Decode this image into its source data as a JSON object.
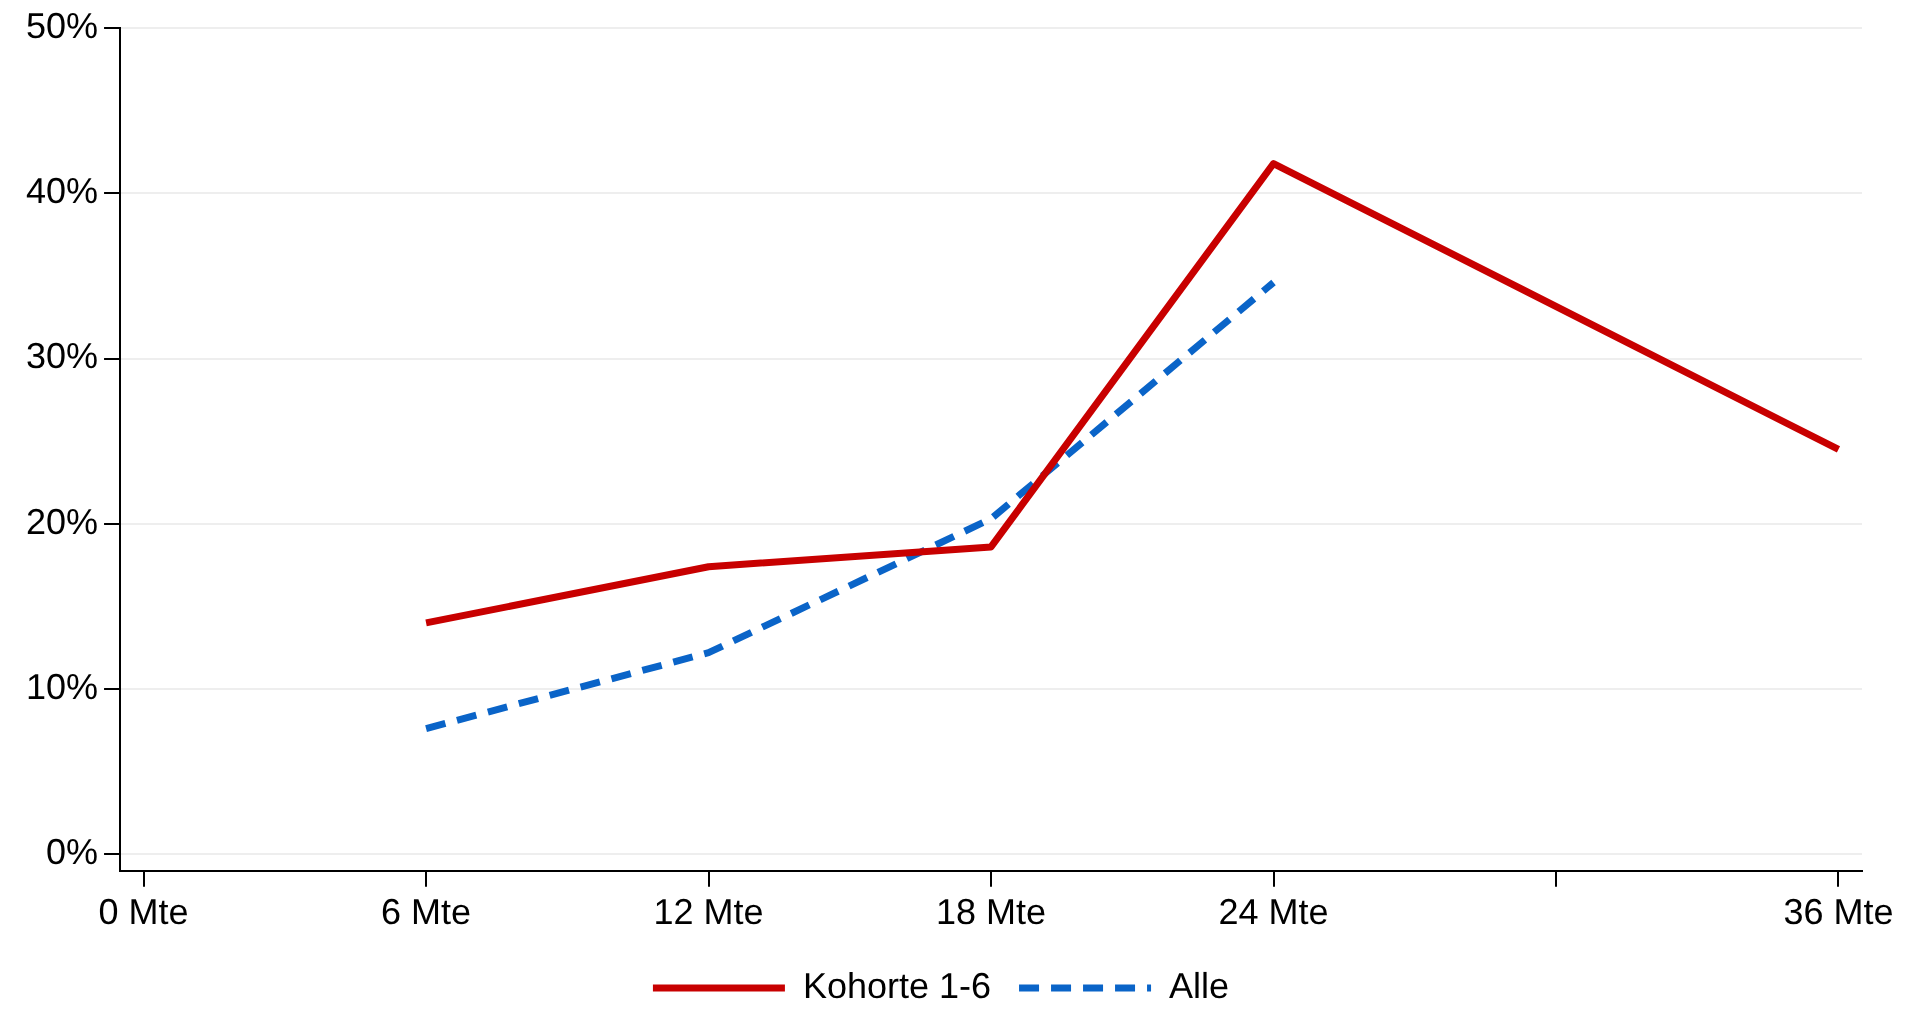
{
  "chart_data": {
    "type": "line",
    "xlim": [
      -0.5,
      36.5
    ],
    "ylim": [
      -1,
      50
    ],
    "xticks": [
      {
        "value": 0,
        "label": "0 Mte"
      },
      {
        "value": 6,
        "label": "6 Mte"
      },
      {
        "value": 12,
        "label": "12 Mte"
      },
      {
        "value": 18,
        "label": "18 Mte"
      },
      {
        "value": 24,
        "label": "24 Mte"
      },
      {
        "value": 30,
        "label": null
      },
      {
        "value": 36,
        "label": "36 Mte"
      }
    ],
    "yticks": [
      {
        "value": 0,
        "label": "0%"
      },
      {
        "value": 10,
        "label": "10%"
      },
      {
        "value": 20,
        "label": "20%"
      },
      {
        "value": 30,
        "label": "30%"
      },
      {
        "value": 40,
        "label": "40%"
      },
      {
        "value": 50,
        "label": "50%"
      }
    ],
    "grid": "y",
    "legend": "bottom",
    "marker": "none",
    "series": [
      {
        "name": "Kohorte 1-6",
        "color": "#c80000",
        "line_style": "solid",
        "x": [
          6,
          12,
          18,
          24,
          36
        ],
        "values": [
          14.0,
          17.4,
          18.6,
          41.8,
          24.5
        ]
      },
      {
        "name": "Alle",
        "color": "#0a64c8",
        "line_style": "dashed",
        "x": [
          6,
          12,
          18,
          24
        ],
        "values": [
          7.6,
          12.2,
          20.3,
          34.6
        ]
      }
    ]
  }
}
